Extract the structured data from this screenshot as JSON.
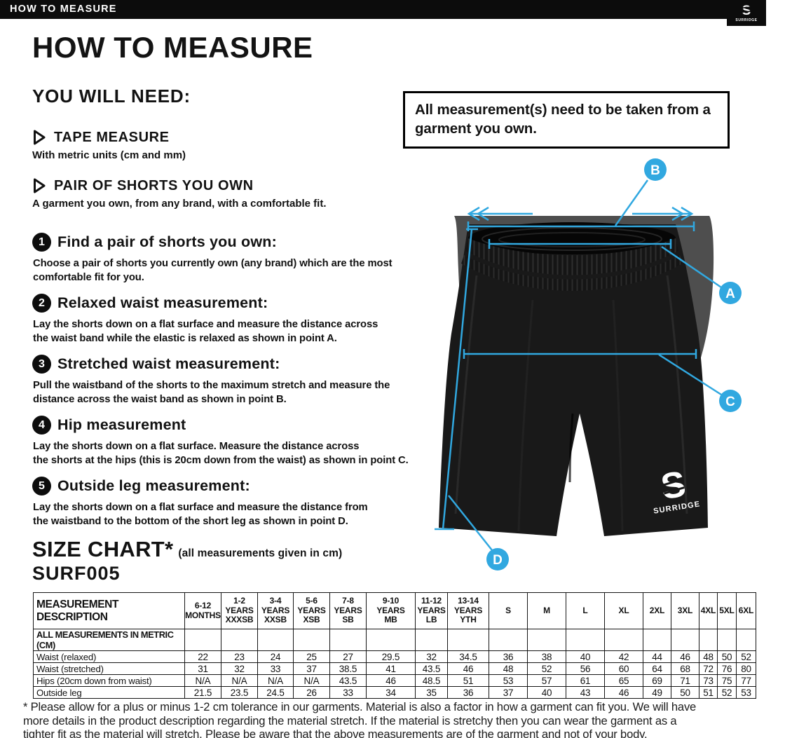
{
  "header": {
    "bar_title": "HOW TO MEASURE",
    "brand": "SURRIDGE",
    "logo_s": "S"
  },
  "page": {
    "title": "HOW TO MEASURE"
  },
  "you_will_need": {
    "heading": "YOU WILL NEED:",
    "items": [
      {
        "title": "TAPE MEASURE",
        "desc": "With metric units (cm and mm)"
      },
      {
        "title": "PAIR OF SHORTS YOU OWN",
        "desc": "A garment you own, from any brand, with a comfortable fit."
      }
    ]
  },
  "note_box": {
    "text": "All measurement(s) need to be taken from a\ngarment you own."
  },
  "steps": [
    {
      "num": "1",
      "title": "Find a pair of shorts you own:",
      "body": "Choose a pair of shorts you currently own (any brand) which are the most\ncomfortable fit for you."
    },
    {
      "num": "2",
      "title": "Relaxed waist measurement:",
      "body": "Lay the shorts down on a flat surface and measure the distance across\nthe waist band while the elastic is relaxed as shown in point A."
    },
    {
      "num": "3",
      "title": "Stretched waist measurement:",
      "body": "Pull the waistband of the shorts to the maximum stretch and measure the\ndistance across the waist band as shown in point B."
    },
    {
      "num": "4",
      "title": "Hip measurement",
      "body": "Lay the shorts down on a flat surface. Measure the distance across\nthe shorts at the hips (this is 20cm down from the waist)  as shown in point C."
    },
    {
      "num": "5",
      "title": "Outside leg measurement:",
      "body": "Lay the shorts down on a flat surface and measure the distance from\nthe waistband to the bottom of the short leg as shown in point D."
    }
  ],
  "diagram": {
    "points": [
      "A",
      "B",
      "C",
      "D"
    ],
    "accent_color": "#31a8e0",
    "logo_s": "S",
    "logo_word": "SURRIDGE"
  },
  "size_chart": {
    "heading": "SIZE CHART*",
    "heading_note": "(all measurements given in cm)",
    "product_code": "SURF005",
    "desc_header": "MEASUREMENT DESCRIPTION",
    "metric_row_label": "ALL MEASUREMENTS IN METRIC (CM)",
    "columns": [
      "6-12\nMONTHS",
      "1-2\nYEARS\nXXXSB",
      "3-4\nYEARS\nXXSB",
      "5-6\nYEARS\nXSB",
      "7-8\nYEARS\nSB",
      "9-10\nYEARS\nMB",
      "11-12\nYEARS\nLB",
      "13-14\nYEARS\nYTH",
      "S",
      "M",
      "L",
      "XL",
      "2XL",
      "3XL",
      "4XL",
      "5XL",
      "6XL"
    ],
    "rows": [
      {
        "label": "Waist (relaxed)",
        "values": [
          "22",
          "23",
          "24",
          "25",
          "27",
          "29.5",
          "32",
          "34.5",
          "36",
          "38",
          "40",
          "42",
          "44",
          "46",
          "48",
          "50",
          "52"
        ]
      },
      {
        "label": "Waist (stretched)",
        "values": [
          "31",
          "32",
          "33",
          "37",
          "38.5",
          "41",
          "43.5",
          "46",
          "48",
          "52",
          "56",
          "60",
          "64",
          "68",
          "72",
          "76",
          "80"
        ]
      },
      {
        "label": "Hips (20cm down from waist)",
        "values": [
          "N/A",
          "N/A",
          "N/A",
          "N/A",
          "43.5",
          "46",
          "48.5",
          "51",
          "53",
          "57",
          "61",
          "65",
          "69",
          "71",
          "73",
          "75",
          "77"
        ]
      },
      {
        "label": "Outside leg",
        "values": [
          "21.5",
          "23.5",
          "24.5",
          "26",
          "33",
          "34",
          "35",
          "36",
          "37",
          "40",
          "43",
          "46",
          "49",
          "50",
          "51",
          "52",
          "53"
        ]
      }
    ]
  },
  "footnote": {
    "lines": [
      "* Please allow for a plus or minus 1-2 cm tolerance in our garments. Material is also a factor in how a garment can fit you. We will have",
      "more details in the product description regarding the material stretch.  If the material is stretchy then you can wear the garment as a",
      "tighter fit as the material will stretch.  Please be aware that the above measurements are of the garment and not of your body."
    ]
  }
}
